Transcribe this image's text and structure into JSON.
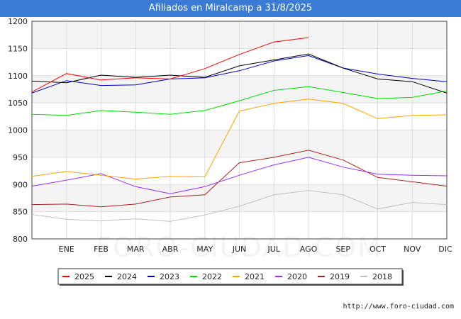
{
  "title": "Afiliados en Miralcamp a 31/8/2025",
  "footer_url": "http://www.foro-ciudad.com",
  "watermark": "FORO-CIUDAD.COM",
  "chart_data": {
    "type": "line",
    "title": "Afiliados en Miralcamp a 31/8/2025",
    "xlabel": "",
    "ylabel": "",
    "ylim": [
      800,
      1200
    ],
    "yticks": [
      800,
      850,
      900,
      950,
      1000,
      1050,
      1100,
      1150,
      1200
    ],
    "categories": [
      "",
      "ENE",
      "FEB",
      "MAR",
      "ABR",
      "MAY",
      "JUN",
      "JUL",
      "AGO",
      "SEP",
      "OCT",
      "NOV",
      "DIC"
    ],
    "grid": true,
    "legend_position": "bottom",
    "series": [
      {
        "name": "2025",
        "color": "#ff0000",
        "values": [
          1070,
          1104,
          1092,
          1096,
          1094,
          1113,
          1139,
          1162,
          1170,
          null,
          null,
          null,
          null
        ]
      },
      {
        "name": "2024",
        "color": "#000000",
        "values": [
          1090,
          1087,
          1101,
          1097,
          1101,
          1097,
          1118,
          1129,
          1140,
          1114,
          1094,
          1089,
          1068
        ]
      },
      {
        "name": "2023",
        "color": "#0000cc",
        "values": [
          1068,
          1091,
          1082,
          1083,
          1094,
          1096,
          1109,
          1127,
          1137,
          1114,
          1103,
          1095,
          1089
        ]
      },
      {
        "name": "2022",
        "color": "#00dd00",
        "values": [
          1029,
          1027,
          1036,
          1033,
          1029,
          1036,
          1054,
          1073,
          1080,
          1069,
          1058,
          1060,
          1072
        ]
      },
      {
        "name": "2021",
        "color": "#ffa500",
        "values": [
          915,
          924,
          917,
          910,
          915,
          914,
          1035,
          1049,
          1057,
          1049,
          1021,
          1027,
          1028
        ]
      },
      {
        "name": "2020",
        "color": "#9b30ff",
        "values": [
          897,
          908,
          920,
          896,
          883,
          896,
          917,
          936,
          950,
          932,
          919,
          917,
          916
        ]
      },
      {
        "name": "2019",
        "color": "#aa2222",
        "values": [
          863,
          864,
          859,
          864,
          877,
          881,
          940,
          950,
          963,
          945,
          913,
          905,
          897
        ]
      },
      {
        "name": "2018",
        "color": "#c0c0c0",
        "values": [
          845,
          836,
          833,
          837,
          832,
          844,
          860,
          881,
          889,
          881,
          855,
          867,
          863
        ]
      }
    ]
  }
}
